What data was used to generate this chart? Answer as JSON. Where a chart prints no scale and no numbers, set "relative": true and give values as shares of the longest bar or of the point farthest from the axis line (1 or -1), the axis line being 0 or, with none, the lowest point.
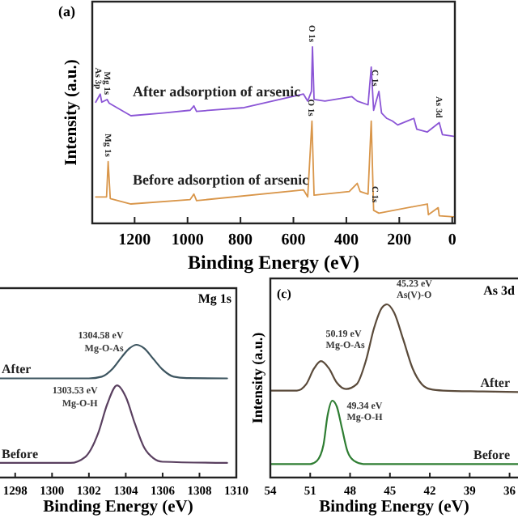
{
  "chart_data": [
    {
      "type": "line",
      "relative": true,
      "tick_labels": "x",
      "legend": false,
      "xlabel": "Binding Energy (eV)",
      "ylabel": "Intensity (a.u.)",
      "xlim": [
        1360,
        -10
      ],
      "xticks": [
        1200,
        1000,
        800,
        600,
        400,
        200,
        0
      ],
      "annotations": [
        "(a)",
        {
          "text": "As 3p",
          "x": 1336,
          "y": 0.733
        },
        {
          "text": "Mg 1s",
          "x": 1301,
          "y": 0.702
        },
        {
          "text": "O 1s",
          "x": 528,
          "y": 1.0
        },
        {
          "text": "C 1s",
          "x": 290,
          "y": 0.75
        },
        {
          "text": "As 3d",
          "x": 49,
          "y": 0.571
        },
        {
          "text": "Mg 1s",
          "x": 1300,
          "y": 0.35
        },
        {
          "text": "O 1s",
          "x": 530,
          "y": 0.58
        },
        {
          "text": "C 1s",
          "x": 290,
          "y": 0.09
        }
      ],
      "series": [
        {
          "name": "After adsorption of arsenic",
          "color": "#8b55d6",
          "x": [
            1347,
            1330,
            1324,
            1304,
            1296,
            1214,
            1092,
            990,
            976,
            966,
            786,
            562,
            546,
            532,
            528,
            522,
            481,
            379,
            359,
            318,
            306,
            297,
            277,
            267,
            247,
            226,
            206,
            145,
            134,
            94,
            49,
            37,
            -5
          ],
          "values": [
            0.687,
            0.733,
            0.687,
            0.702,
            0.681,
            0.61,
            0.626,
            0.641,
            0.666,
            0.635,
            0.656,
            0.733,
            0.693,
            0.748,
            1.0,
            0.702,
            0.693,
            0.718,
            0.693,
            0.672,
            0.886,
            0.641,
            0.748,
            0.626,
            0.595,
            0.58,
            0.558,
            0.595,
            0.534,
            0.518,
            0.571,
            0.503,
            0.494
          ]
        },
        {
          "name": "Before adsorption of arsenic",
          "color": "#d9964a",
          "x": [
            1347,
            1306,
            1300,
            1292,
            1214,
            990,
            976,
            966,
            562,
            546,
            530,
            522,
            389,
            359,
            348,
            318,
            306,
            297,
            277,
            94,
            90,
            53,
            49,
            -5
          ],
          "values": [
            0.15,
            0.15,
            0.35,
            0.141,
            0.11,
            0.135,
            0.166,
            0.129,
            0.19,
            0.15,
            0.58,
            0.16,
            0.181,
            0.227,
            0.181,
            0.166,
            0.58,
            0.074,
            0.058,
            0.11,
            0.049,
            0.089,
            0.043,
            0.037
          ]
        }
      ]
    },
    {
      "type": "line",
      "relative": true,
      "tick_labels": "x",
      "legend": false,
      "xlabel": "Binding Energy (eV)",
      "xlim": [
        1297,
        1310
      ],
      "xticks": [
        1298,
        1300,
        1302,
        1304,
        1306,
        1308,
        1310
      ],
      "annotations": [
        "Mg 1s",
        {
          "text": "1304.58 eV",
          "x": 1304.58,
          "y": 1.0
        },
        {
          "text": "Mg-O-As",
          "x": 1304.58,
          "y": 1.0
        },
        {
          "text": "1303.53 eV",
          "x": 1303.53,
          "y": 0.694
        },
        {
          "text": "Mg-O-H",
          "x": 1303.53,
          "y": 0.694
        }
      ],
      "series": [
        {
          "name": "After",
          "color": "#3d5560",
          "x": [
            1297,
            1302,
            1302.7,
            1303.3,
            1303.8,
            1304.2,
            1304.58,
            1305,
            1305.5,
            1306,
            1306.6,
            1307.3,
            1309.5
          ],
          "values": [
            0.747,
            0.747,
            0.76,
            0.822,
            0.911,
            0.973,
            1.0,
            0.973,
            0.893,
            0.813,
            0.76,
            0.749,
            0.747
          ]
        },
        {
          "name": "Before",
          "color": "#5a4060",
          "x": [
            1297,
            1301,
            1301.8,
            1302.5,
            1303,
            1303.53,
            1304,
            1304.5,
            1305,
            1305.5,
            1306,
            1309.5
          ],
          "values": [
            0.11,
            0.11,
            0.155,
            0.333,
            0.555,
            0.694,
            0.608,
            0.404,
            0.226,
            0.146,
            0.119,
            0.11
          ]
        }
      ]
    },
    {
      "type": "line",
      "relative": true,
      "tick_labels": "x",
      "legend": false,
      "xlabel": "Binding Energy (eV)",
      "ylabel": "Intensity (a.u.)",
      "xlim": [
        54,
        35
      ],
      "xticks": [
        54,
        51,
        48,
        45,
        42,
        39,
        36
      ],
      "annotations": [
        "(c)",
        "As 3d",
        {
          "text": "50.19 eV",
          "x": 50.19,
          "y": 0.672
        },
        {
          "text": "Mg-O-As",
          "x": 50.19,
          "y": 0.672
        },
        {
          "text": "45.23 eV",
          "x": 45.23,
          "y": 1.0
        },
        {
          "text": "As(V)-O",
          "x": 45.23,
          "y": 1.0
        },
        {
          "text": "49.34 eV",
          "x": 49.34,
          "y": 0.444
        },
        {
          "text": "Mg-O-H",
          "x": 49.34,
          "y": 0.444
        }
      ],
      "series": [
        {
          "name": "After",
          "color": "#5a4a3a",
          "x": [
            54,
            52,
            51.3,
            50.7,
            50.19,
            49.6,
            49,
            48.3,
            47.5,
            46.8,
            46.2,
            45.6,
            45.23,
            44.7,
            44,
            43.3,
            42.6,
            42,
            41,
            38,
            35.2
          ],
          "values": [
            0.502,
            0.502,
            0.539,
            0.631,
            0.672,
            0.631,
            0.548,
            0.511,
            0.539,
            0.677,
            0.862,
            0.981,
            1.0,
            0.954,
            0.797,
            0.631,
            0.539,
            0.511,
            0.502,
            0.497,
            0.493
          ]
        },
        {
          "name": "Before",
          "color": "#2e7d32",
          "x": [
            54,
            51,
            50.5,
            50,
            49.7,
            49.34,
            49,
            48.6,
            48.2,
            47.7,
            47,
            35.2
          ],
          "values": [
            0.078,
            0.078,
            0.096,
            0.189,
            0.355,
            0.444,
            0.41,
            0.281,
            0.152,
            0.096,
            0.078,
            0.078
          ]
        }
      ]
    }
  ]
}
